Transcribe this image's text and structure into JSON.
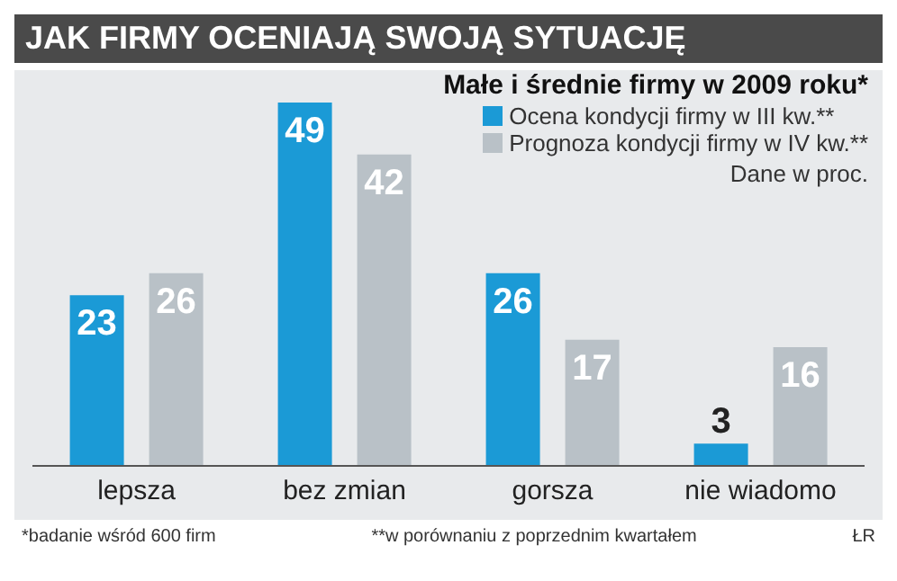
{
  "chart_data": {
    "type": "bar",
    "title": "JAK FIRMY OCENIAJĄ SWOJĄ SYTUACJĘ",
    "subtitle": "Małe i średnie firmy w 2009 roku*",
    "categories": [
      "lepsza",
      "bez zmian",
      "gorsza",
      "nie wiadomo"
    ],
    "series": [
      {
        "name": "Ocena kondycji firmy w III kw.**",
        "color": "#1b9ad6",
        "values": [
          23,
          49,
          26,
          3
        ]
      },
      {
        "name": "Prognoza kondycji firmy w IV kw.**",
        "color": "#b9c1c7",
        "values": [
          26,
          42,
          17,
          16
        ]
      }
    ],
    "tick_labels": "x",
    "data_labels": true,
    "legend": "top right",
    "annotations": [
      "Dane w proc.",
      "*badanie wśród 600 firm",
      "**w porównaniu z poprzednim kwartałem",
      "ŁR"
    ]
  }
}
